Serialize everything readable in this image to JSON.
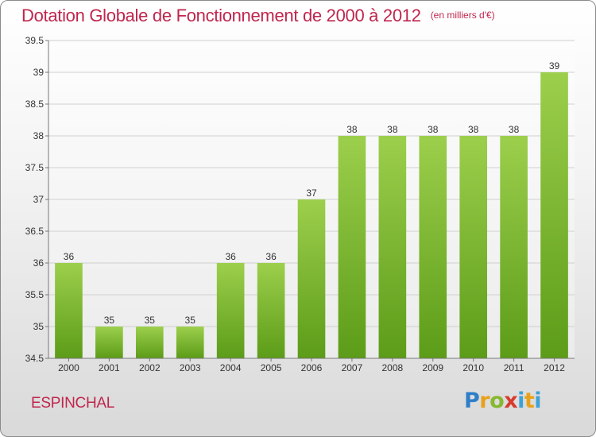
{
  "header": {
    "title": "Dotation Globale de Fonctionnement de 2000 à 2012",
    "unit": "(en milliers d'€)"
  },
  "footer": {
    "place": "ESPINCHAL",
    "logo": [
      "P",
      "r",
      "o",
      "x",
      "i",
      "t",
      "i"
    ]
  },
  "chart_data": {
    "type": "bar",
    "title": "Dotation Globale de Fonctionnement de 2000 à 2012",
    "ylabel": "(en milliers d'€)",
    "xlabel": "",
    "categories": [
      "2000",
      "2001",
      "2002",
      "2003",
      "2004",
      "2005",
      "2006",
      "2007",
      "2008",
      "2009",
      "2010",
      "2011",
      "2012"
    ],
    "values": [
      36,
      35,
      35,
      35,
      36,
      36,
      37,
      38,
      38,
      38,
      38,
      38,
      39
    ],
    "value_labels": [
      "36",
      "35",
      "35",
      "35",
      "36",
      "36",
      "37",
      "38",
      "38",
      "38",
      "38",
      "38",
      "39"
    ],
    "ylim": [
      34.5,
      39.5
    ],
    "yticks": [
      34.5,
      35,
      35.5,
      36,
      36.5,
      37,
      37.5,
      38,
      38.5,
      39,
      39.5
    ],
    "ytick_labels": [
      "34.5",
      "35",
      "35.5",
      "36",
      "36.5",
      "37",
      "37.5",
      "38",
      "38.5",
      "39",
      "39.5"
    ],
    "grid": true,
    "bar_color_top": "#9ccf4c",
    "bar_color_bottom": "#5c9c18"
  }
}
